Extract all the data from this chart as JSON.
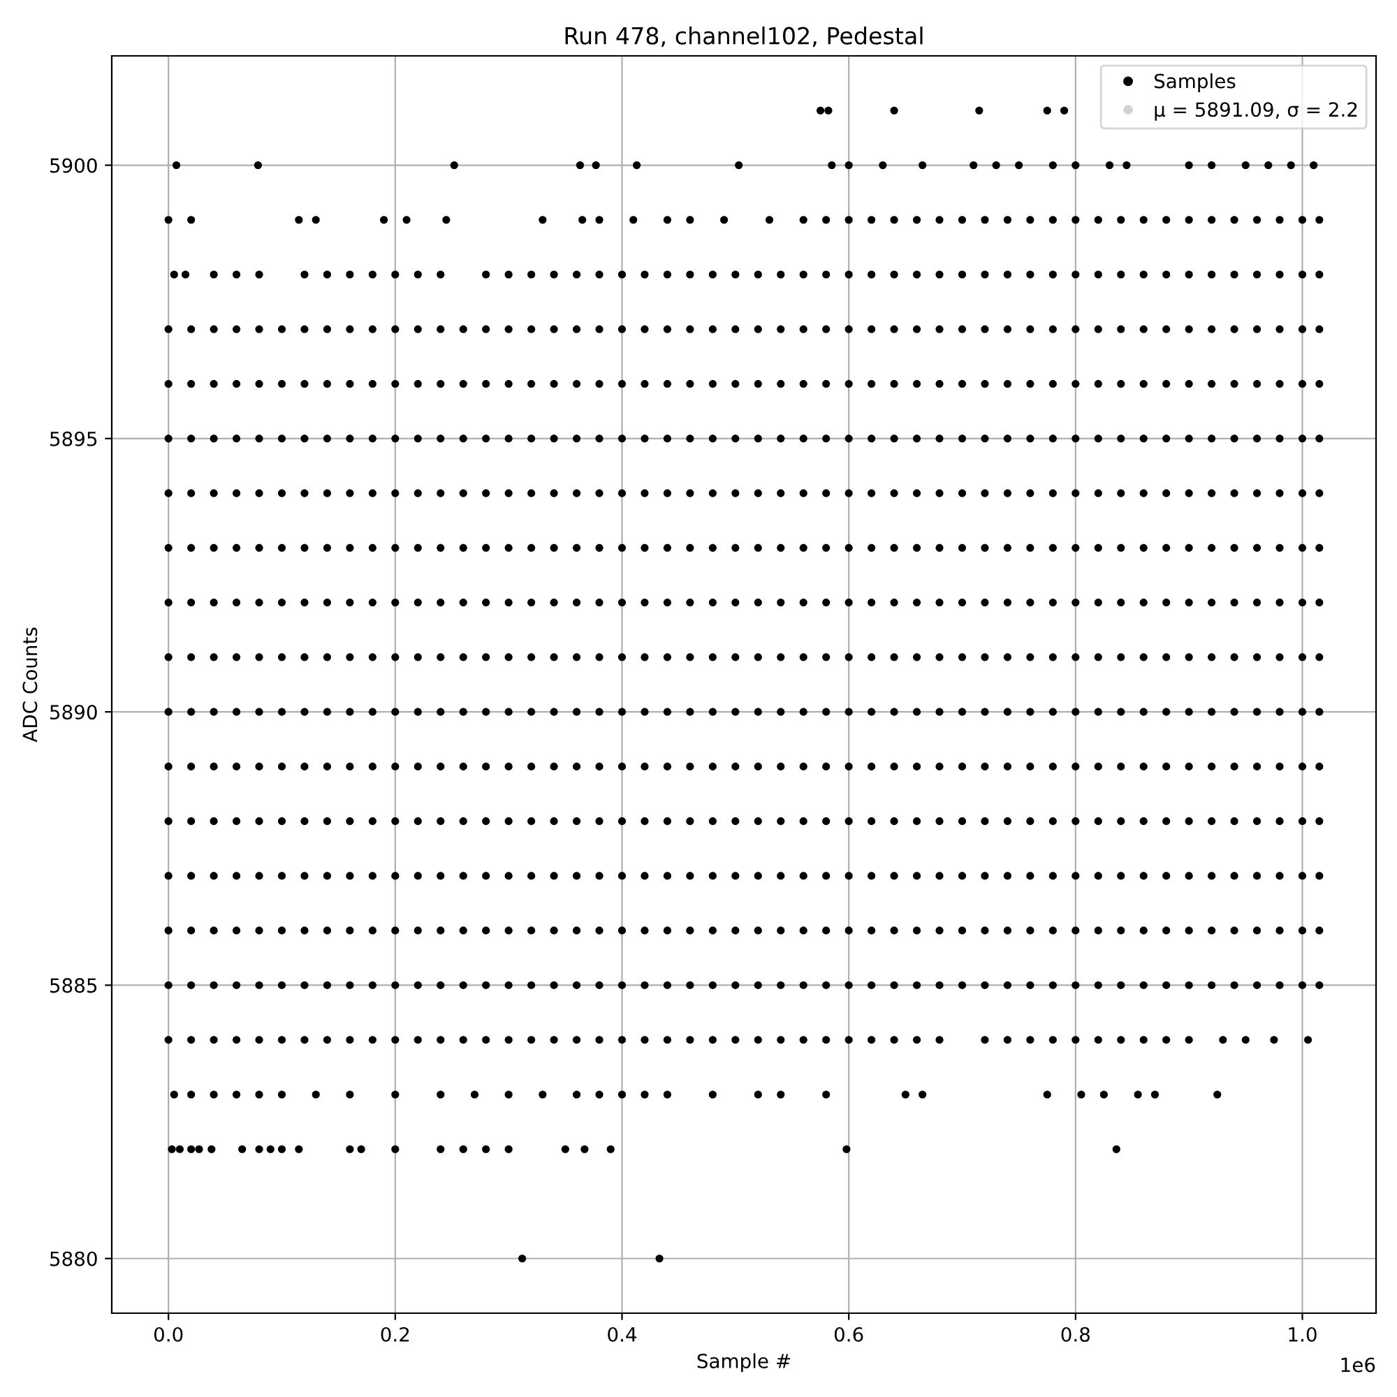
{
  "chart_data": {
    "type": "scatter",
    "title": "Run 478, channel102, Pedestal",
    "xlabel": "Sample #",
    "ylabel": "ADC Counts",
    "annotations": [
      "1e6"
    ],
    "xlim": [
      -0.05,
      1.065
    ],
    "xticks": [
      {
        "value": 0,
        "label": "0.0"
      },
      0.2,
      0.4,
      0.6,
      0.8,
      {
        "value": 1,
        "label": "1.0"
      }
    ],
    "ylim": [
      5879,
      5902
    ],
    "yticks": [
      5880,
      5885,
      5890,
      5895,
      5900
    ],
    "grid": true,
    "legend": "top right",
    "x": [
      0,
      0.02,
      0.04,
      0.06,
      0.08,
      0.1,
      0.12,
      0.14,
      0.16,
      0.18,
      0.2,
      0.22,
      0.24,
      0.26,
      0.28,
      0.3,
      0.32,
      0.34,
      0.36,
      0.38,
      0.4,
      0.42,
      0.44,
      0.46,
      0.48,
      0.5,
      0.52,
      0.54,
      0.56,
      0.58,
      0.6,
      0.62,
      0.64,
      0.66,
      0.68,
      0.7,
      0.72,
      0.74,
      0.76,
      0.78,
      0.8,
      0.82,
      0.84,
      0.86,
      0.88,
      0.9,
      0.92,
      0.94,
      0.96,
      0.98,
      1.0,
      1.015
    ],
    "series": [
      {
        "name": "Samples",
        "color": "#000000",
        "values": [
          5890,
          5890,
          5890,
          5890,
          5890,
          5890,
          5890,
          5890,
          5890,
          5890,
          5890,
          5890,
          5890,
          5890,
          5890,
          5890,
          5890,
          5890,
          5890,
          5890,
          5890,
          5890,
          5890,
          5890,
          5890,
          5890,
          5890,
          5890,
          5890,
          5890,
          5890,
          5890,
          5890,
          5890,
          5890,
          5890,
          5890,
          5890,
          5890,
          5890,
          5890,
          5890,
          5890,
          5890,
          5890,
          5890,
          5890,
          5890,
          5890,
          5890,
          5890,
          5890
        ]
      },
      {
        "name": "μ = 5891.09, σ = 2.2",
        "color": "#d3d3d3",
        "values": [
          null,
          null,
          null,
          null,
          null,
          null,
          null,
          null,
          null,
          null,
          null,
          null,
          null,
          null,
          null,
          null,
          null,
          null,
          null,
          null,
          null,
          null,
          null,
          null,
          null,
          null,
          null,
          null,
          null,
          null,
          null,
          null,
          null,
          null,
          null,
          null,
          null,
          null,
          null,
          null,
          null,
          null,
          null,
          null,
          null,
          null,
          null,
          null,
          null,
          null,
          null,
          null
        ]
      },
      {
        "color": "#000000",
        "values": [
          5885,
          5885,
          5885,
          5885,
          5885,
          5885,
          5885,
          5885,
          5885,
          5885,
          5885,
          5885,
          5885,
          5885,
          5885,
          5885,
          5885,
          5885,
          5885,
          5885,
          5885,
          5885,
          5885,
          5885,
          5885,
          5885,
          5885,
          5885,
          5885,
          5885,
          5885,
          5885,
          5885,
          5885,
          5885,
          5885,
          5885,
          5885,
          5885,
          5885,
          5885,
          5885,
          5885,
          5885,
          5885,
          5885,
          5885,
          5885,
          5885,
          5885,
          5885,
          5885
        ]
      },
      {
        "color": "#000000",
        "values": [
          5886,
          5886,
          5886,
          5886,
          5886,
          5886,
          5886,
          5886,
          5886,
          5886,
          5886,
          5886,
          5886,
          5886,
          5886,
          5886,
          5886,
          5886,
          5886,
          5886,
          5886,
          5886,
          5886,
          5886,
          5886,
          5886,
          5886,
          5886,
          5886,
          5886,
          5886,
          5886,
          5886,
          5886,
          5886,
          5886,
          5886,
          5886,
          5886,
          5886,
          5886,
          5886,
          5886,
          5886,
          5886,
          5886,
          5886,
          5886,
          5886,
          5886,
          5886,
          5886
        ]
      },
      {
        "color": "#000000",
        "values": [
          5887,
          5887,
          5887,
          5887,
          5887,
          5887,
          5887,
          5887,
          5887,
          5887,
          5887,
          5887,
          5887,
          5887,
          5887,
          5887,
          5887,
          5887,
          5887,
          5887,
          5887,
          5887,
          5887,
          5887,
          5887,
          5887,
          5887,
          5887,
          5887,
          5887,
          5887,
          5887,
          5887,
          5887,
          5887,
          5887,
          5887,
          5887,
          5887,
          5887,
          5887,
          5887,
          5887,
          5887,
          5887,
          5887,
          5887,
          5887,
          5887,
          5887,
          5887,
          5887
        ]
      },
      {
        "color": "#000000",
        "values": [
          5888,
          5888,
          5888,
          5888,
          5888,
          5888,
          5888,
          5888,
          5888,
          5888,
          5888,
          5888,
          5888,
          5888,
          5888,
          5888,
          5888,
          5888,
          5888,
          5888,
          5888,
          5888,
          5888,
          5888,
          5888,
          5888,
          5888,
          5888,
          5888,
          5888,
          5888,
          5888,
          5888,
          5888,
          5888,
          5888,
          5888,
          5888,
          5888,
          5888,
          5888,
          5888,
          5888,
          5888,
          5888,
          5888,
          5888,
          5888,
          5888,
          5888,
          5888,
          5888
        ]
      },
      {
        "color": "#000000",
        "values": [
          5889,
          5889,
          5889,
          5889,
          5889,
          5889,
          5889,
          5889,
          5889,
          5889,
          5889,
          5889,
          5889,
          5889,
          5889,
          5889,
          5889,
          5889,
          5889,
          5889,
          5889,
          5889,
          5889,
          5889,
          5889,
          5889,
          5889,
          5889,
          5889,
          5889,
          5889,
          5889,
          5889,
          5889,
          5889,
          5889,
          5889,
          5889,
          5889,
          5889,
          5889,
          5889,
          5889,
          5889,
          5889,
          5889,
          5889,
          5889,
          5889,
          5889,
          5889,
          5889
        ]
      },
      {
        "color": "#000000",
        "values": [
          5891,
          5891,
          5891,
          5891,
          5891,
          5891,
          5891,
          5891,
          5891,
          5891,
          5891,
          5891,
          5891,
          5891,
          5891,
          5891,
          5891,
          5891,
          5891,
          5891,
          5891,
          5891,
          5891,
          5891,
          5891,
          5891,
          5891,
          5891,
          5891,
          5891,
          5891,
          5891,
          5891,
          5891,
          5891,
          5891,
          5891,
          5891,
          5891,
          5891,
          5891,
          5891,
          5891,
          5891,
          5891,
          5891,
          5891,
          5891,
          5891,
          5891,
          5891,
          5891
        ]
      },
      {
        "color": "#000000",
        "values": [
          5892,
          5892,
          5892,
          5892,
          5892,
          5892,
          5892,
          5892,
          5892,
          5892,
          5892,
          5892,
          5892,
          5892,
          5892,
          5892,
          5892,
          5892,
          5892,
          5892,
          5892,
          5892,
          5892,
          5892,
          5892,
          5892,
          5892,
          5892,
          5892,
          5892,
          5892,
          5892,
          5892,
          5892,
          5892,
          5892,
          5892,
          5892,
          5892,
          5892,
          5892,
          5892,
          5892,
          5892,
          5892,
          5892,
          5892,
          5892,
          5892,
          5892,
          5892,
          5892
        ]
      },
      {
        "color": "#000000",
        "values": [
          5893,
          5893,
          5893,
          5893,
          5893,
          5893,
          5893,
          5893,
          5893,
          5893,
          5893,
          5893,
          5893,
          5893,
          5893,
          5893,
          5893,
          5893,
          5893,
          5893,
          5893,
          5893,
          5893,
          5893,
          5893,
          5893,
          5893,
          5893,
          5893,
          5893,
          5893,
          5893,
          5893,
          5893,
          5893,
          5893,
          5893,
          5893,
          5893,
          5893,
          5893,
          5893,
          5893,
          5893,
          5893,
          5893,
          5893,
          5893,
          5893,
          5893,
          5893,
          5893
        ]
      },
      {
        "color": "#000000",
        "values": [
          5894,
          5894,
          5894,
          5894,
          5894,
          5894,
          5894,
          5894,
          5894,
          5894,
          5894,
          5894,
          5894,
          5894,
          5894,
          5894,
          5894,
          5894,
          5894,
          5894,
          5894,
          5894,
          5894,
          5894,
          5894,
          5894,
          5894,
          5894,
          5894,
          5894,
          5894,
          5894,
          5894,
          5894,
          5894,
          5894,
          5894,
          5894,
          5894,
          5894,
          5894,
          5894,
          5894,
          5894,
          5894,
          5894,
          5894,
          5894,
          5894,
          5894,
          5894,
          5894
        ]
      },
      {
        "color": "#000000",
        "values": [
          5895,
          5895,
          5895,
          5895,
          5895,
          5895,
          5895,
          5895,
          5895,
          5895,
          5895,
          5895,
          5895,
          5895,
          5895,
          5895,
          5895,
          5895,
          5895,
          5895,
          5895,
          5895,
          5895,
          5895,
          5895,
          5895,
          5895,
          5895,
          5895,
          5895,
          5895,
          5895,
          5895,
          5895,
          5895,
          5895,
          5895,
          5895,
          5895,
          5895,
          5895,
          5895,
          5895,
          5895,
          5895,
          5895,
          5895,
          5895,
          5895,
          5895,
          5895,
          5895
        ]
      },
      {
        "color": "#000000",
        "values": [
          5896,
          5896,
          5896,
          5896,
          5896,
          5896,
          5896,
          5896,
          5896,
          5896,
          5896,
          5896,
          5896,
          5896,
          5896,
          5896,
          5896,
          5896,
          5896,
          5896,
          5896,
          5896,
          5896,
          5896,
          5896,
          5896,
          5896,
          5896,
          5896,
          5896,
          5896,
          5896,
          5896,
          5896,
          5896,
          5896,
          5896,
          5896,
          5896,
          5896,
          5896,
          5896,
          5896,
          5896,
          5896,
          5896,
          5896,
          5896,
          5896,
          5896,
          5896,
          5896
        ]
      },
      {
        "color": "#000000",
        "values": [
          5897,
          5897,
          5897,
          5897,
          5897,
          5897,
          5897,
          5897,
          5897,
          5897,
          5897,
          5897,
          5897,
          5897,
          5897,
          5897,
          5897,
          5897,
          5897,
          5897,
          5897,
          5897,
          5897,
          5897,
          5897,
          5897,
          5897,
          5897,
          5897,
          5897,
          5897,
          5897,
          5897,
          5897,
          5897,
          5897,
          5897,
          5897,
          5897,
          5897,
          5897,
          5897,
          5897,
          5897,
          5897,
          5897,
          5897,
          5897,
          5897,
          5897,
          5897,
          5897
        ]
      },
      {
        "color": "#000000",
        "x": [
          0,
          0.02,
          0.04,
          0.06,
          0.08,
          0.1,
          0.12,
          0.14,
          0.16,
          0.18,
          0.2,
          0.22,
          0.24,
          0.26,
          0.28,
          0.3,
          0.32,
          0.34,
          0.36,
          0.38,
          0.4,
          0.42,
          0.44,
          0.46,
          0.48,
          0.5,
          0.52,
          0.54,
          0.56,
          0.58,
          0.6,
          0.62,
          0.64,
          0.66,
          0.68,
          0.72,
          0.74,
          0.76,
          0.78,
          0.8,
          0.82,
          0.84,
          0.86,
          0.88,
          0.9,
          0.93,
          0.95,
          0.975,
          1.005
        ],
        "values": [
          5884,
          5884,
          5884,
          5884,
          5884,
          5884,
          5884,
          5884,
          5884,
          5884,
          5884,
          5884,
          5884,
          5884,
          5884,
          5884,
          5884,
          5884,
          5884,
          5884,
          5884,
          5884,
          5884,
          5884,
          5884,
          5884,
          5884,
          5884,
          5884,
          5884,
          5884,
          5884,
          5884,
          5884,
          5884,
          5884,
          5884,
          5884,
          5884,
          5884,
          5884,
          5884,
          5884,
          5884,
          5884,
          5884,
          5884,
          5884,
          5884
        ]
      },
      {
        "color": "#000000",
        "x": [
          0.005,
          0.02,
          0.04,
          0.06,
          0.08,
          0.1,
          0.13,
          0.16,
          0.2,
          0.24,
          0.27,
          0.3,
          0.33,
          0.36,
          0.38,
          0.4,
          0.42,
          0.44,
          0.48,
          0.52,
          0.54,
          0.58,
          0.65,
          0.665,
          0.775,
          0.805,
          0.825,
          0.855,
          0.87,
          0.925
        ],
        "values": [
          5883,
          5883,
          5883,
          5883,
          5883,
          5883,
          5883,
          5883,
          5883,
          5883,
          5883,
          5883,
          5883,
          5883,
          5883,
          5883,
          5883,
          5883,
          5883,
          5883,
          5883,
          5883,
          5883,
          5883,
          5883,
          5883,
          5883,
          5883,
          5883,
          5883
        ]
      },
      {
        "color": "#000000",
        "x": [
          0.003,
          0.01,
          0.02,
          0.027,
          0.038,
          0.065,
          0.08,
          0.09,
          0.1,
          0.115,
          0.16,
          0.17,
          0.2,
          0.24,
          0.26,
          0.28,
          0.3,
          0.35,
          0.367,
          0.39,
          0.598,
          0.836
        ],
        "values": [
          5882,
          5882,
          5882,
          5882,
          5882,
          5882,
          5882,
          5882,
          5882,
          5882,
          5882,
          5882,
          5882,
          5882,
          5882,
          5882,
          5882,
          5882,
          5882,
          5882,
          5882,
          5882
        ]
      },
      {
        "color": "#000000",
        "x": [
          0.312,
          0.433
        ],
        "values": [
          5880,
          5880
        ]
      },
      {
        "color": "#000000",
        "x": [
          0.005,
          0.015,
          0.04,
          0.06,
          0.08,
          0.12,
          0.14,
          0.16,
          0.18,
          0.2,
          0.22,
          0.24,
          0.28,
          0.3,
          0.32,
          0.34,
          0.36,
          0.38,
          0.4,
          0.42,
          0.44,
          0.46,
          0.48,
          0.5,
          0.52,
          0.54,
          0.56,
          0.58,
          0.6,
          0.62,
          0.64,
          0.66,
          0.68,
          0.7,
          0.72,
          0.74,
          0.76,
          0.78,
          0.8,
          0.82,
          0.84,
          0.86,
          0.88,
          0.9,
          0.92,
          0.94,
          0.96,
          0.98,
          1.0,
          1.015
        ],
        "values": [
          5898,
          5898,
          5898,
          5898,
          5898,
          5898,
          5898,
          5898,
          5898,
          5898,
          5898,
          5898,
          5898,
          5898,
          5898,
          5898,
          5898,
          5898,
          5898,
          5898,
          5898,
          5898,
          5898,
          5898,
          5898,
          5898,
          5898,
          5898,
          5898,
          5898,
          5898,
          5898,
          5898,
          5898,
          5898,
          5898,
          5898,
          5898,
          5898,
          5898,
          5898,
          5898,
          5898,
          5898,
          5898,
          5898,
          5898,
          5898,
          5898,
          5898
        ]
      },
      {
        "color": "#000000",
        "x": [
          0,
          0.02,
          0.115,
          0.13,
          0.19,
          0.21,
          0.245,
          0.33,
          0.365,
          0.38,
          0.41,
          0.44,
          0.46,
          0.49,
          0.53,
          0.56,
          0.58,
          0.6,
          0.62,
          0.64,
          0.66,
          0.68,
          0.7,
          0.72,
          0.74,
          0.76,
          0.78,
          0.8,
          0.82,
          0.84,
          0.86,
          0.88,
          0.9,
          0.92,
          0.94,
          0.96,
          0.98,
          1.0,
          1.015
        ],
        "values": [
          5899,
          5899,
          5899,
          5899,
          5899,
          5899,
          5899,
          5899,
          5899,
          5899,
          5899,
          5899,
          5899,
          5899,
          5899,
          5899,
          5899,
          5899,
          5899,
          5899,
          5899,
          5899,
          5899,
          5899,
          5899,
          5899,
          5899,
          5899,
          5899,
          5899,
          5899,
          5899,
          5899,
          5899,
          5899,
          5899,
          5899,
          5899,
          5899
        ]
      },
      {
        "color": "#000000",
        "x": [
          0.007,
          0.079,
          0.252,
          0.363,
          0.377,
          0.413,
          0.503,
          0.585,
          0.6,
          0.63,
          0.665,
          0.71,
          0.73,
          0.75,
          0.78,
          0.8,
          0.83,
          0.845,
          0.9,
          0.92,
          0.95,
          0.97,
          0.99,
          1.01
        ],
        "values": [
          5900,
          5900,
          5900,
          5900,
          5900,
          5900,
          5900,
          5900,
          5900,
          5900,
          5900,
          5900,
          5900,
          5900,
          5900,
          5900,
          5900,
          5900,
          5900,
          5900,
          5900,
          5900,
          5900,
          5900
        ]
      },
      {
        "color": "#000000",
        "x": [
          0.575,
          0.582,
          0.64,
          0.715,
          0.775,
          0.79
        ],
        "values": [
          5901,
          5901,
          5901,
          5901,
          5901,
          5901
        ]
      }
    ]
  }
}
